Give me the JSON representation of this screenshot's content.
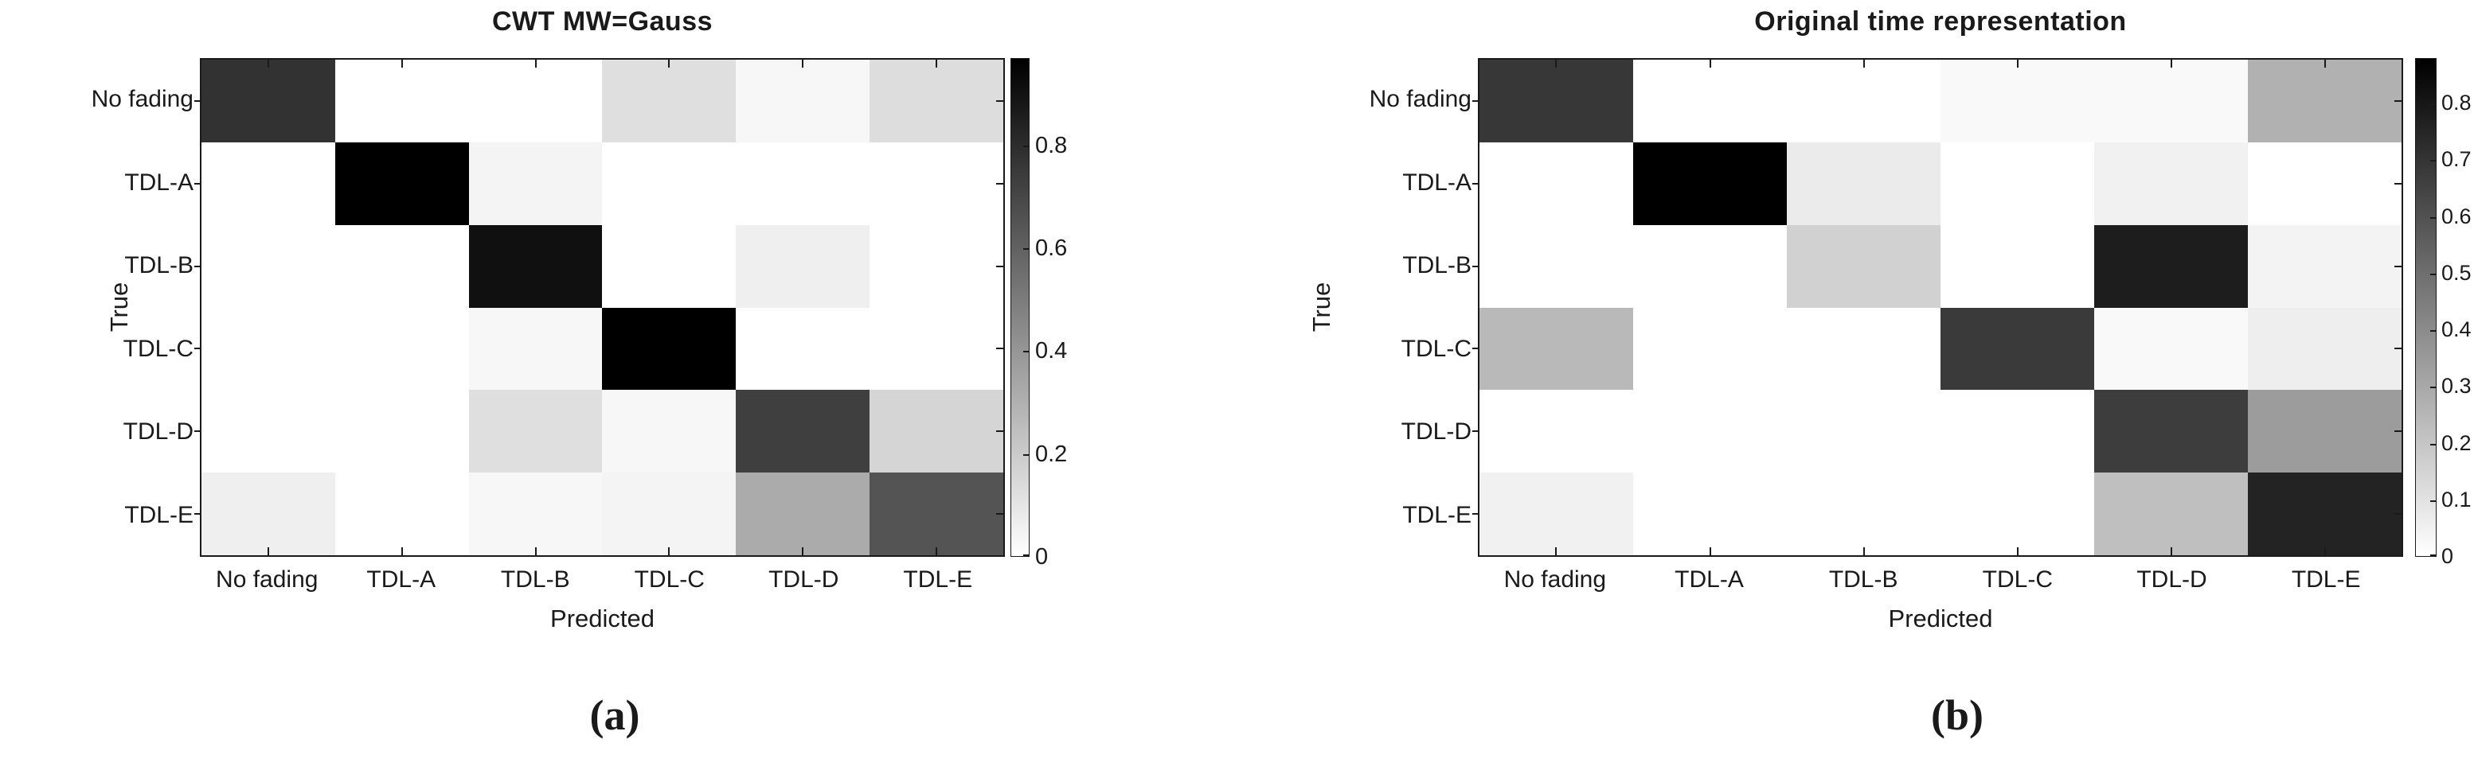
{
  "colors": {
    "background": "#ffffff",
    "text": "#1a1a1a",
    "axis": "#1a1a1a",
    "colormap_high": "#000000",
    "colormap_low": "#ffffff"
  },
  "chart_data": [
    {
      "type": "heatmap",
      "subtype": "confusion-matrix",
      "title": "CWT MW=Gauss",
      "caption": "(a)",
      "xlabel": "Predicted",
      "ylabel": "True",
      "x_categories": [
        "No fading",
        "TDL-A",
        "TDL-B",
        "TDL-C",
        "TDL-D",
        "TDL-E"
      ],
      "y_categories": [
        "No fading",
        "TDL-A",
        "TDL-B",
        "TDL-C",
        "TDL-D",
        "TDL-E"
      ],
      "matrix": [
        [
          0.78,
          0,
          0,
          0.12,
          0.03,
          0.13
        ],
        [
          0,
          0.97,
          0.04,
          0,
          0,
          0
        ],
        [
          0,
          0,
          0.91,
          0,
          0.06,
          0
        ],
        [
          0,
          0,
          0.03,
          0.97,
          0,
          0
        ],
        [
          0,
          0,
          0.12,
          0.03,
          0.73,
          0.16
        ],
        [
          0.06,
          0,
          0.03,
          0.04,
          0.32,
          0.65
        ]
      ],
      "colorbar": {
        "min": 0,
        "max": 0.97,
        "tick_values": [
          0,
          0.2,
          0.4,
          0.6,
          0.8
        ],
        "tick_labels": [
          "0",
          "0.2",
          "0.4",
          "0.6",
          "0.8"
        ],
        "colormap": "gray-reversed (white=0, black=max)",
        "position": "right"
      },
      "grid": false,
      "legend": "none"
    },
    {
      "type": "heatmap",
      "subtype": "confusion-matrix",
      "title": "Original time representation",
      "caption": "(b)",
      "xlabel": "Predicted",
      "ylabel": "True",
      "x_categories": [
        "No fading",
        "TDL-A",
        "TDL-B",
        "TDL-C",
        "TDL-D",
        "TDL-E"
      ],
      "y_categories": [
        "No fading",
        "TDL-A",
        "TDL-B",
        "TDL-C",
        "TDL-D",
        "TDL-E"
      ],
      "matrix": [
        [
          0.69,
          0,
          0,
          0.02,
          0.02,
          0.27
        ],
        [
          0,
          0.88,
          0.07,
          0,
          0.05,
          0
        ],
        [
          0,
          0,
          0.16,
          0,
          0.78,
          0.04
        ],
        [
          0.24,
          0,
          0,
          0.68,
          0.02,
          0.06
        ],
        [
          0,
          0,
          0,
          0,
          0.67,
          0.34
        ],
        [
          0.05,
          0,
          0,
          0,
          0.22,
          0.76
        ]
      ],
      "colorbar": {
        "min": 0,
        "max": 0.88,
        "tick_values": [
          0,
          0.1,
          0.2,
          0.3,
          0.4,
          0.5,
          0.6,
          0.7,
          0.8
        ],
        "tick_labels": [
          "0",
          "0.1",
          "0.2",
          "0.3",
          "0.4",
          "0.5",
          "0.6",
          "0.7",
          "0.8"
        ],
        "colormap": "gray-reversed (white=0, black=max)",
        "position": "right"
      },
      "grid": false,
      "legend": "none"
    }
  ]
}
